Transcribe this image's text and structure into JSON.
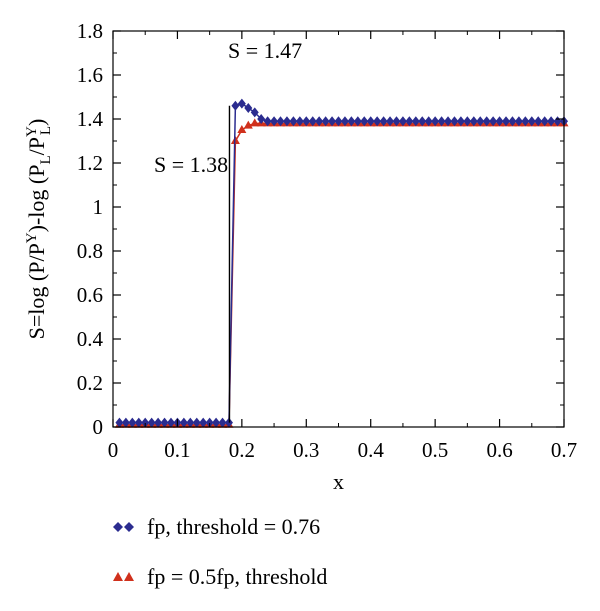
{
  "chart_data": {
    "type": "scatter",
    "xlabel": "x",
    "ylabel_parts": [
      "S=log (P/P",
      "Y",
      ")-log (P",
      "L",
      "/P",
      "Y",
      "L",
      ")"
    ],
    "xlim": [
      0,
      0.7
    ],
    "ylim": [
      0,
      1.8
    ],
    "x_ticks": [
      "0",
      "0.1",
      "0.2",
      "0.3",
      "0.4",
      "0.5",
      "0.6",
      "0.7"
    ],
    "y_ticks": [
      "0",
      "0.2",
      "0.4",
      "0.6",
      "0.8",
      "1",
      "1.2",
      "1.4",
      "1.6",
      "1.8"
    ],
    "x_tick_values": [
      0,
      0.1,
      0.2,
      0.3,
      0.4,
      0.5,
      0.6,
      0.7
    ],
    "y_tick_values": [
      0,
      0.2,
      0.4,
      0.6,
      0.8,
      1.0,
      1.2,
      1.4,
      1.6,
      1.8
    ],
    "annotations": [
      {
        "text": "S = 1.47"
      },
      {
        "text": "S = 1.38"
      }
    ],
    "series": [
      {
        "name": "fp, threshold = 0.76",
        "color": "#2b2c8f",
        "marker": "diamond",
        "x": [
          0.01,
          0.02,
          0.03,
          0.04,
          0.05,
          0.06,
          0.07,
          0.08,
          0.09,
          0.1,
          0.11,
          0.12,
          0.13,
          0.14,
          0.15,
          0.16,
          0.17,
          0.18,
          0.19,
          0.2,
          0.21,
          0.22,
          0.23,
          0.24,
          0.25,
          0.26,
          0.27,
          0.28,
          0.29,
          0.3,
          0.31,
          0.32,
          0.33,
          0.34,
          0.35,
          0.36,
          0.37,
          0.38,
          0.39,
          0.4,
          0.41,
          0.42,
          0.43,
          0.44,
          0.45,
          0.46,
          0.47,
          0.48,
          0.49,
          0.5,
          0.51,
          0.52,
          0.53,
          0.54,
          0.55,
          0.56,
          0.57,
          0.58,
          0.59,
          0.6,
          0.61,
          0.62,
          0.63,
          0.64,
          0.65,
          0.66,
          0.67,
          0.68,
          0.69,
          0.7
        ],
        "y": [
          0.02,
          0.02,
          0.02,
          0.02,
          0.02,
          0.02,
          0.02,
          0.02,
          0.02,
          0.02,
          0.02,
          0.02,
          0.02,
          0.02,
          0.02,
          0.02,
          0.02,
          0.02,
          1.46,
          1.47,
          1.45,
          1.43,
          1.4,
          1.39,
          1.39,
          1.39,
          1.39,
          1.39,
          1.39,
          1.39,
          1.39,
          1.39,
          1.39,
          1.39,
          1.39,
          1.39,
          1.39,
          1.39,
          1.39,
          1.39,
          1.39,
          1.39,
          1.39,
          1.39,
          1.39,
          1.39,
          1.39,
          1.39,
          1.39,
          1.39,
          1.39,
          1.39,
          1.39,
          1.39,
          1.39,
          1.39,
          1.39,
          1.39,
          1.39,
          1.39,
          1.39,
          1.39,
          1.39,
          1.39,
          1.39,
          1.39,
          1.39,
          1.39,
          1.39,
          1.39
        ]
      },
      {
        "name": "fp = 0.5fp, threshold",
        "color": "#d0301c",
        "marker": "triangle",
        "x": [
          0.01,
          0.02,
          0.03,
          0.04,
          0.05,
          0.06,
          0.07,
          0.08,
          0.09,
          0.1,
          0.11,
          0.12,
          0.13,
          0.14,
          0.15,
          0.16,
          0.17,
          0.18,
          0.19,
          0.2,
          0.21,
          0.22,
          0.23,
          0.24,
          0.25,
          0.26,
          0.27,
          0.28,
          0.29,
          0.3,
          0.31,
          0.32,
          0.33,
          0.34,
          0.35,
          0.36,
          0.37,
          0.38,
          0.39,
          0.4,
          0.41,
          0.42,
          0.43,
          0.44,
          0.45,
          0.46,
          0.47,
          0.48,
          0.49,
          0.5,
          0.51,
          0.52,
          0.53,
          0.54,
          0.55,
          0.56,
          0.57,
          0.58,
          0.59,
          0.6,
          0.61,
          0.62,
          0.63,
          0.64,
          0.65,
          0.66,
          0.67,
          0.68,
          0.69,
          0.7
        ],
        "y": [
          0.01,
          0.01,
          0.01,
          0.01,
          0.01,
          0.01,
          0.01,
          0.01,
          0.01,
          0.01,
          0.01,
          0.01,
          0.01,
          0.01,
          0.01,
          0.01,
          0.01,
          0.01,
          1.3,
          1.35,
          1.37,
          1.38,
          1.38,
          1.38,
          1.38,
          1.38,
          1.38,
          1.38,
          1.38,
          1.38,
          1.38,
          1.38,
          1.38,
          1.38,
          1.38,
          1.38,
          1.38,
          1.38,
          1.38,
          1.38,
          1.38,
          1.38,
          1.38,
          1.38,
          1.38,
          1.38,
          1.38,
          1.38,
          1.38,
          1.38,
          1.38,
          1.38,
          1.38,
          1.38,
          1.38,
          1.38,
          1.38,
          1.38,
          1.38,
          1.38,
          1.38,
          1.38,
          1.38,
          1.38,
          1.38,
          1.38,
          1.38,
          1.38,
          1.38,
          1.38
        ]
      }
    ],
    "legend_position": "bottom"
  }
}
